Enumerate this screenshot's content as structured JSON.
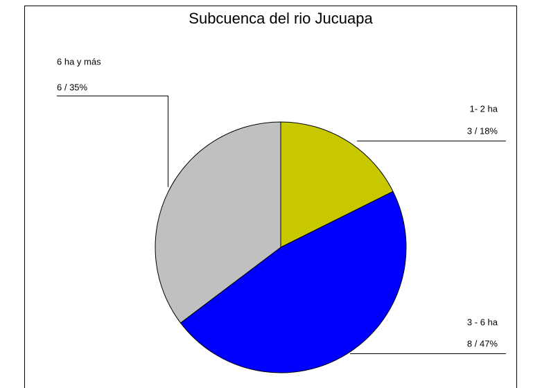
{
  "chart_data": {
    "type": "pie",
    "title": "Subcuenca del rio Jucuapa",
    "categories": [
      "1- 2 ha",
      "3 - 6 ha",
      "6 ha y más"
    ],
    "values": [
      3,
      8,
      6
    ],
    "value_labels": [
      "3 / 18%",
      "8 / 47%",
      "6 / 35%"
    ],
    "colors": [
      "#c8c800",
      "#0000ff",
      "#c0c0c0"
    ]
  }
}
